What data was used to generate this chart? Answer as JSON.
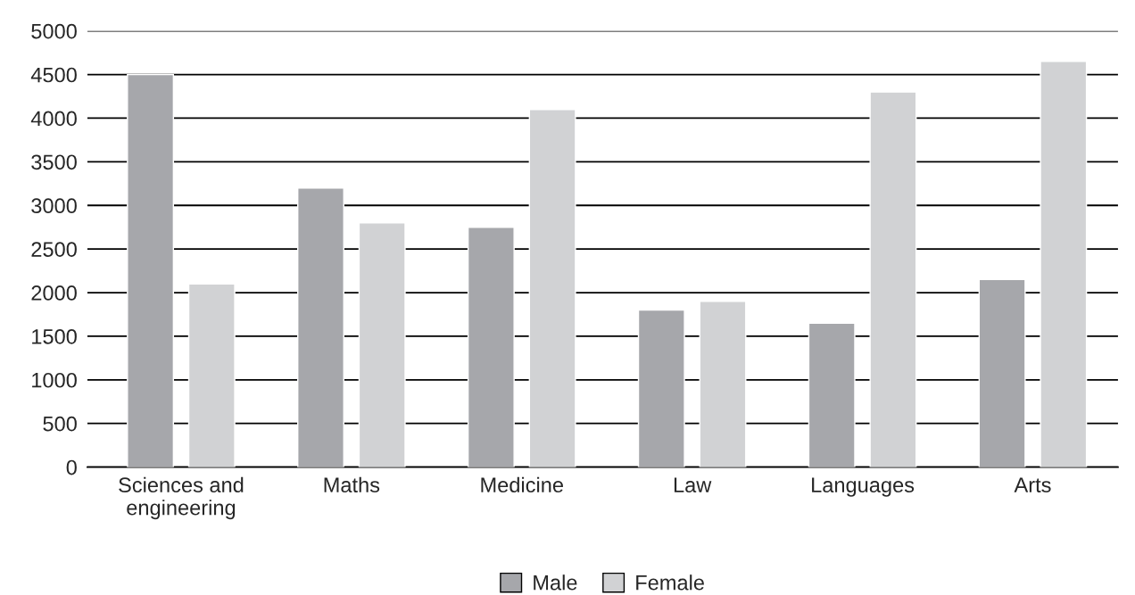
{
  "chart_data": {
    "type": "bar",
    "categories": [
      "Sciences and\nengineering",
      "Maths",
      "Medicine",
      "Law",
      "Languages",
      "Arts"
    ],
    "series": [
      {
        "name": "Male",
        "color": "#a6a7ab",
        "values": [
          4500,
          3200,
          2750,
          1800,
          1650,
          2150
        ]
      },
      {
        "name": "Female",
        "color": "#d1d2d4",
        "values": [
          2100,
          2800,
          4100,
          1900,
          4300,
          4650
        ]
      }
    ],
    "ylim": [
      0,
      5000
    ],
    "yticks": [
      0,
      500,
      1000,
      1500,
      2000,
      2500,
      3000,
      3500,
      4000,
      4500,
      5000
    ],
    "grid": "y",
    "legend": "bottom"
  }
}
